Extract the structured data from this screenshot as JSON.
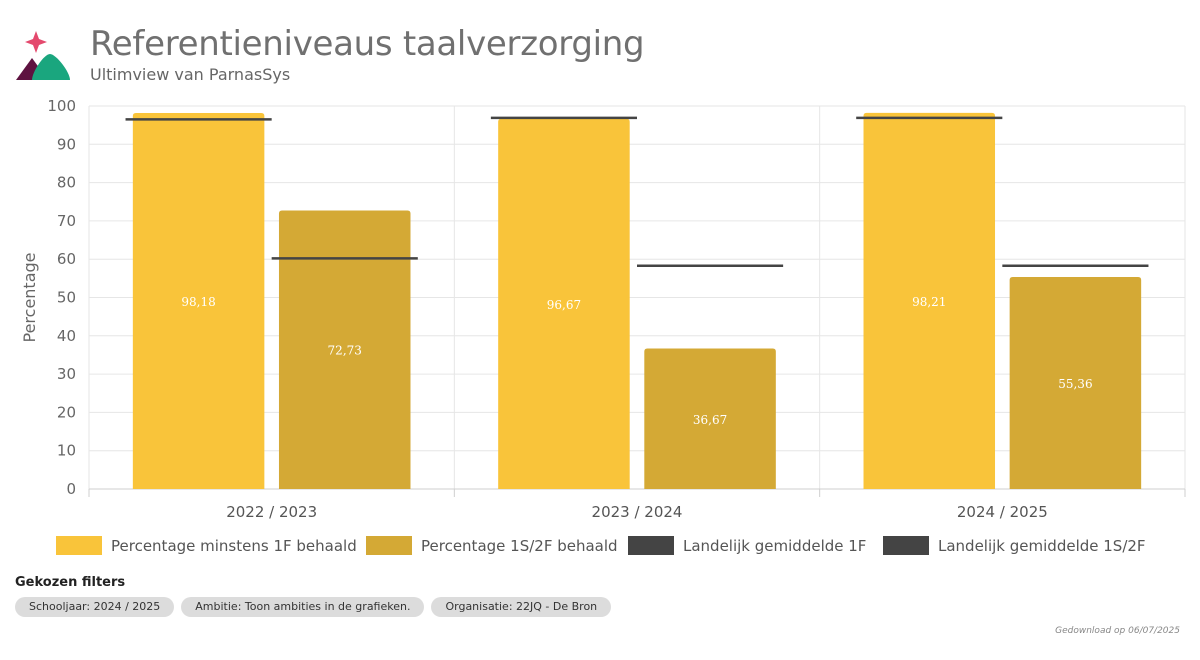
{
  "header": {
    "title": "Referentieniveaus taalverzorging",
    "subtitle": "Ultimview van ParnasSys"
  },
  "chart_data": {
    "type": "bar",
    "categories": [
      "2022 / 2023",
      "2023 / 2024",
      "2024 / 2025"
    ],
    "ylabel": "Percentage",
    "ylim": [
      0,
      100
    ],
    "yticks": [
      0,
      10,
      20,
      30,
      40,
      50,
      60,
      70,
      80,
      90,
      100
    ],
    "grid": true,
    "legend_position": "bottom",
    "series": [
      {
        "name": "Percentage minstens 1F behaald",
        "kind": "bar",
        "color": "#f9c43a",
        "values": [
          98.18,
          96.67,
          98.21
        ],
        "labels": [
          "98,18",
          "96,67",
          "98,21"
        ]
      },
      {
        "name": "Percentage 1S/2F behaald",
        "kind": "bar",
        "color": "#d4a935",
        "values": [
          72.73,
          36.67,
          55.36
        ],
        "labels": [
          "72,73",
          "36,67",
          "55,36"
        ]
      },
      {
        "name": "Landelijk gemiddelde 1F",
        "kind": "reference-line",
        "color": "#444444",
        "values": [
          96.5,
          96.9,
          96.9
        ]
      },
      {
        "name": "Landelijk gemiddelde 1S/2F",
        "kind": "reference-line",
        "color": "#444444",
        "values": [
          60.2,
          58.3,
          58.3
        ]
      }
    ]
  },
  "filters": {
    "title": "Gekozen filters",
    "chips": [
      "Schooljaar: 2024 / 2025",
      "Ambitie: Toon ambities in de grafieken.",
      "Organisatie: 22JQ - De Bron"
    ]
  },
  "footer": {
    "download": "Gedownload op 06/07/2025"
  },
  "logo": {
    "icon": "parnassys-logo",
    "colors": [
      "#e4496d",
      "#6b1a4a",
      "#1aa67e"
    ]
  }
}
